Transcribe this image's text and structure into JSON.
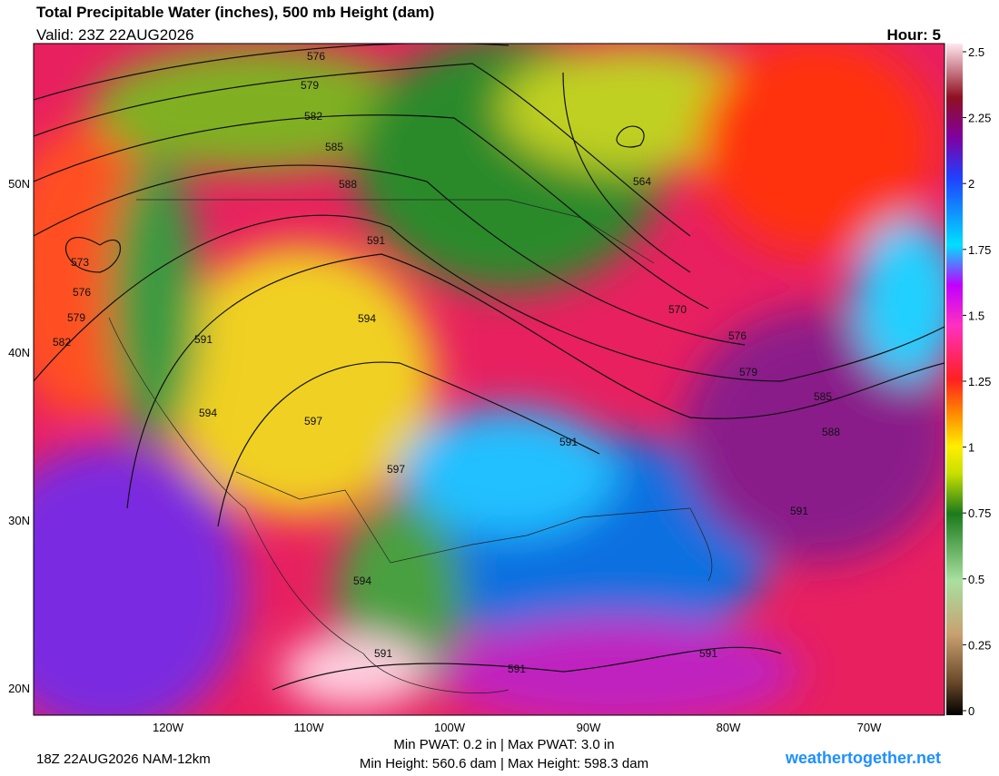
{
  "header": {
    "title": "Total Precipitable Water (inches), 500 mb Height (dam)",
    "valid": "Valid: 23Z 22AUG2026",
    "hour": "Hour: 5"
  },
  "map": {
    "latitude_labels": [
      "50N",
      "40N",
      "30N",
      "20N"
    ],
    "longitude_labels": [
      "120W",
      "110W",
      "100W",
      "90W",
      "80W",
      "70W"
    ],
    "contour_labels": [
      "576",
      "579",
      "582",
      "585",
      "588",
      "591",
      "594",
      "591",
      "594",
      "597",
      "597",
      "591",
      "564",
      "573",
      "576",
      "579",
      "582",
      "570",
      "576",
      "579",
      "585",
      "588",
      "591",
      "594",
      "591",
      "591",
      "591"
    ]
  },
  "colorbar": {
    "ticks": [
      0,
      0.25,
      0.5,
      0.75,
      1,
      1.25,
      1.5,
      1.75,
      2,
      2.25,
      2.5
    ]
  },
  "footer": {
    "run": "18Z 22AUG2026 NAM-12km",
    "pwat": "Min PWAT:   0.2 in | Max PWAT:   3.0 in",
    "height": "Min Height: 560.6 dam | Max Height: 598.3 dam",
    "site": "weathertogether.net"
  }
}
